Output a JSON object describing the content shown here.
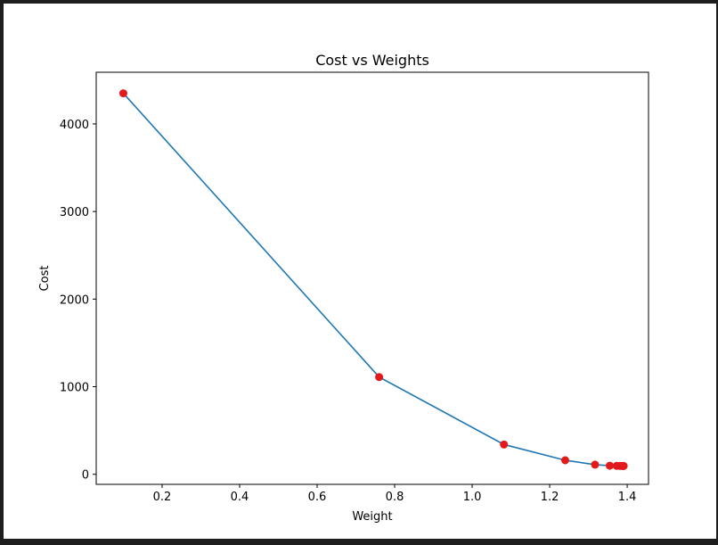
{
  "chart_data": {
    "type": "line",
    "title": "Cost vs Weights",
    "xlabel": "Weight",
    "ylabel": "Cost",
    "xlim": [
      0.03,
      1.455
    ],
    "ylim": [
      -115,
      4590
    ],
    "xticks": [
      0.2,
      0.4,
      0.6,
      0.8,
      1.0,
      1.2,
      1.4
    ],
    "xtick_labels": [
      "0.2",
      "0.4",
      "0.6",
      "0.8",
      "1.0",
      "1.2",
      "1.4"
    ],
    "yticks": [
      0,
      1000,
      2000,
      3000,
      4000
    ],
    "ytick_labels": [
      "0",
      "1000",
      "2000",
      "3000",
      "4000"
    ],
    "grid": false,
    "series": [
      {
        "x": [
          0.1,
          0.76,
          1.082,
          1.24,
          1.317,
          1.355,
          1.373,
          1.382,
          1.387,
          1.389,
          1.39,
          1.391
        ],
        "y": [
          4350,
          1110,
          340,
          160,
          110,
          98,
          96,
          95,
          95,
          95,
          95,
          95
        ],
        "line_color": "#1f77b4",
        "marker_color": "#e31a1c"
      }
    ]
  }
}
